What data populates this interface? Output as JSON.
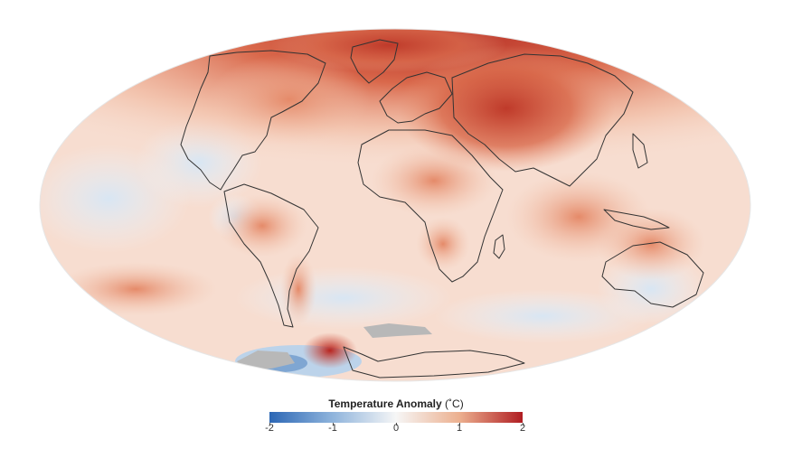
{
  "map": {
    "projection": "mollweide",
    "no_data_color": "#b8b8b8",
    "coastline_color": "#333333"
  },
  "legend": {
    "title": "Temperature Anomaly",
    "unit": "(˚C)",
    "ticks": [
      "-2",
      "-1",
      "0",
      "1",
      "2"
    ],
    "color_stops": [
      "#2c67b5",
      "#8fb4dc",
      "#f6f6f6",
      "#ecb08f",
      "#b01d22"
    ]
  }
}
